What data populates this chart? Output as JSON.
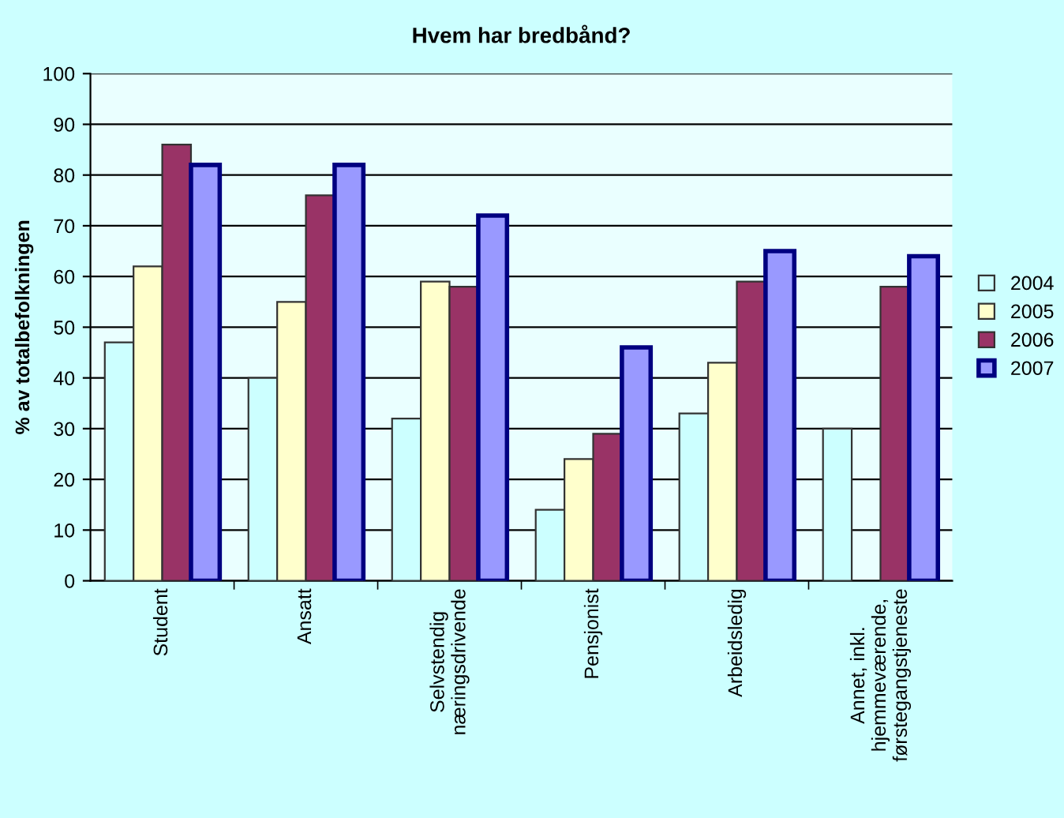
{
  "chart_data": {
    "type": "bar",
    "title": "Hvem har bredbånd?",
    "ylabel": "% av totalbefolkningen",
    "categories": [
      "Student",
      "Ansatt",
      "Selvstendig\nnæringsdrivende",
      "Pensjonist",
      "Arbeidsledig",
      "Annet, inkl.\nhjemmeværende,\nførstegangstjeneste"
    ],
    "series": [
      {
        "name": "2004",
        "color": "#ccffff",
        "values": [
          47,
          40,
          32,
          14,
          33,
          30
        ]
      },
      {
        "name": "2005",
        "color": "#ffffcc",
        "values": [
          62,
          55,
          59,
          24,
          43,
          null
        ]
      },
      {
        "name": "2006",
        "color": "#993366",
        "values": [
          86,
          76,
          58,
          29,
          59,
          58
        ]
      },
      {
        "name": "2007",
        "color": "#9999ff",
        "values": [
          82,
          82,
          72,
          46,
          65,
          64
        ]
      }
    ],
    "ylim": [
      0,
      100
    ],
    "yticks": [
      0,
      10,
      20,
      30,
      40,
      50,
      60,
      70,
      80,
      90,
      100
    ],
    "grid": "y",
    "legend": "right"
  }
}
